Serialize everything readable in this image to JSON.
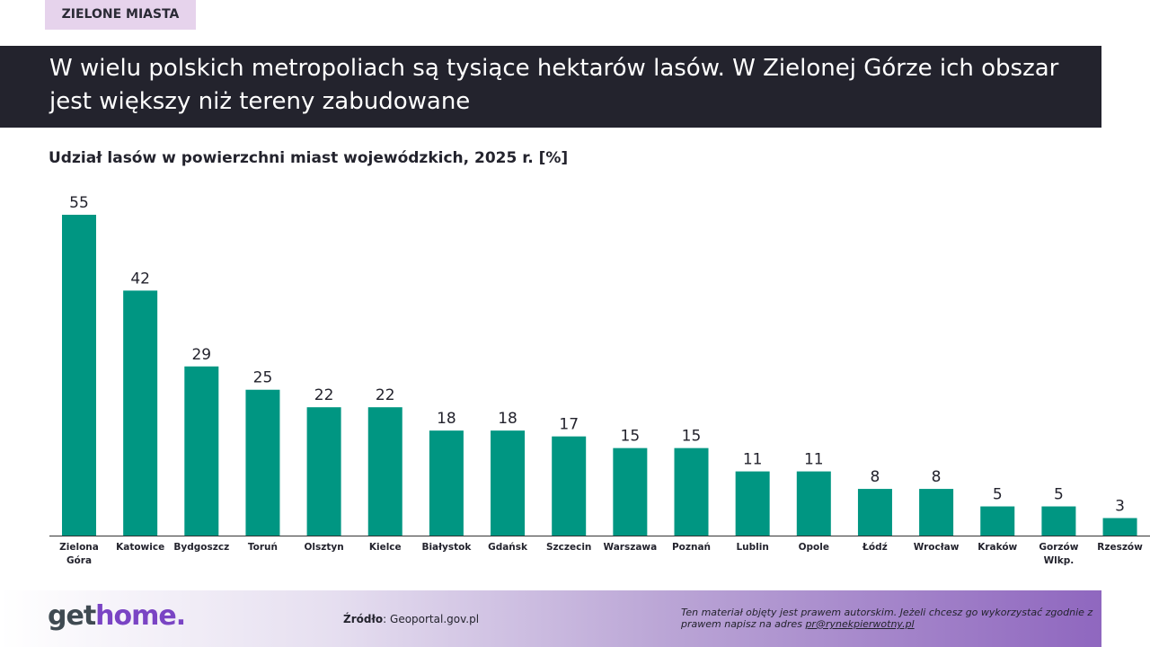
{
  "tag": "ZIELONE MIASTA",
  "title": "W wielu polskich metropoliach są tysiące hektarów lasów. W Zielonej Górze ich obszar jest większy niż tereny zabudowane",
  "footer": {
    "logo_part1": "get",
    "logo_part2": "home.",
    "source_label": "Źródło",
    "source_value": ": Geoportal.gov.pl",
    "copyright_text": "Ten materiał objęty jest prawem autorskim. Jeżeli chcesz go wykorzystać zgodnie z prawem napisz na adres ",
    "copyright_email": "pr@rynekpierwotny.pl"
  },
  "colors": {
    "bar": "#009682",
    "title_bg": "#23232d",
    "accent": "#7a44c4"
  },
  "chart_data": {
    "type": "bar",
    "title": "Udział lasów w powierzchni miast wojewódzkich, 2025 r. [%]",
    "categories": [
      "Zielona Góra",
      "Katowice",
      "Bydgoszcz",
      "Toruń",
      "Olsztyn",
      "Kielce",
      "Białystok",
      "Gdańsk",
      "Szczecin",
      "Warszawa",
      "Poznań",
      "Lublin",
      "Opole",
      "Łódź",
      "Wrocław",
      "Kraków",
      "Gorzów Wlkp.",
      "Rzeszów"
    ],
    "category_lines": [
      [
        "Zielona",
        "Góra"
      ],
      [
        "Katowice"
      ],
      [
        "Bydgoszcz"
      ],
      [
        "Toruń"
      ],
      [
        "Olsztyn"
      ],
      [
        "Kielce"
      ],
      [
        "Białystok"
      ],
      [
        "Gdańsk"
      ],
      [
        "Szczecin"
      ],
      [
        "Warszawa"
      ],
      [
        "Poznań"
      ],
      [
        "Lublin"
      ],
      [
        "Opole"
      ],
      [
        "Łódź"
      ],
      [
        "Wrocław"
      ],
      [
        "Kraków"
      ],
      [
        "Gorzów",
        "Wlkp."
      ],
      [
        "Rzeszów"
      ]
    ],
    "values": [
      55,
      42,
      29,
      25,
      22,
      22,
      18,
      18,
      17,
      15,
      15,
      11,
      11,
      8,
      8,
      5,
      5,
      3
    ],
    "ylim": [
      0,
      55
    ],
    "grid": false,
    "data_labels": true
  }
}
